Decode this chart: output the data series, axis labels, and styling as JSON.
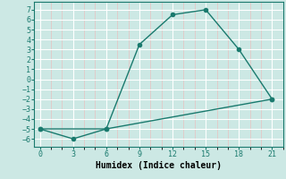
{
  "xlabel": "Humidex (Indice chaleur)",
  "line1_x": [
    0,
    6,
    9,
    12,
    15,
    18,
    21
  ],
  "line1_y": [
    -5,
    -5,
    3.5,
    6.5,
    7,
    3,
    -2
  ],
  "line2_x": [
    0,
    3,
    6,
    21
  ],
  "line2_y": [
    -5,
    -6,
    -5,
    -2
  ],
  "color": "#1a7a6e",
  "bg_color": "#cce8e4",
  "major_grid_color": "#ffffff",
  "minor_grid_color": "#e8c0c0",
  "xticks": [
    0,
    3,
    6,
    9,
    12,
    15,
    18,
    21
  ],
  "yticks": [
    -6,
    -5,
    -4,
    -3,
    -2,
    -1,
    0,
    1,
    2,
    3,
    4,
    5,
    6,
    7
  ],
  "xlim": [
    -0.5,
    22
  ],
  "ylim": [
    -6.8,
    7.8
  ],
  "markersize": 3,
  "linewidth": 1.0,
  "tick_fontsize": 6,
  "label_fontsize": 7
}
